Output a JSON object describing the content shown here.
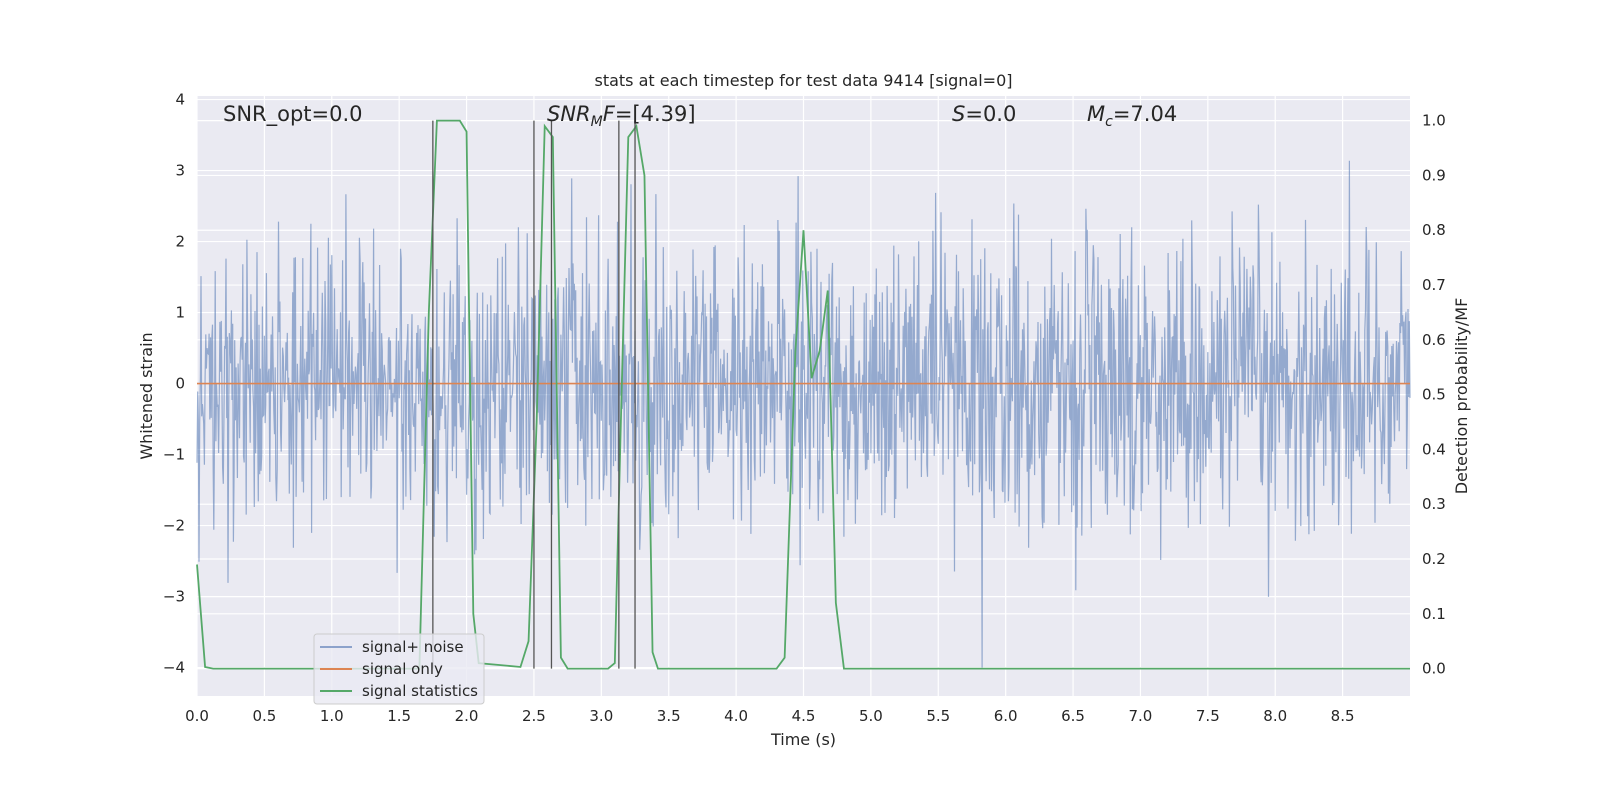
{
  "chart_data": {
    "type": "line",
    "title": "stats at each timestep for test data 9414 [signal=0]",
    "xlabel": "Time (s)",
    "ylabel": "Whitened strain",
    "y2label": "Detection probability/MF",
    "xlim": [
      0.0,
      9.0
    ],
    "ylim": [
      -4.4,
      4.05
    ],
    "y2lim": [
      -0.05,
      1.045
    ],
    "xticks": [
      "0.0",
      "0.5",
      "1.0",
      "1.5",
      "2.0",
      "2.5",
      "3.0",
      "3.5",
      "4.0",
      "4.5",
      "5.0",
      "5.5",
      "6.0",
      "6.5",
      "7.0",
      "7.5",
      "8.0",
      "8.5"
    ],
    "yticks": [
      "4",
      "3",
      "2",
      "1",
      "0",
      "−1",
      "−2",
      "−3",
      "−4"
    ],
    "y2ticks": [
      "1.0",
      "0.9",
      "0.8",
      "0.7",
      "0.6",
      "0.5",
      "0.4",
      "0.3",
      "0.2",
      "0.1",
      "0.0"
    ],
    "annotations": {
      "snr_opt": "SNR_opt=0.0",
      "snr_mf_base": "SNR",
      "snr_mf_sub": "M",
      "snr_mf_mid": "F",
      "snr_mf_val": "=[4.39]",
      "s_sym": "S",
      "s_val": "=0.0",
      "mc_base": "M",
      "mc_sub": "c",
      "mc_val": "=7.04"
    },
    "legend": {
      "position": "lower-left",
      "entries": [
        "signal+ noise",
        "signal only",
        "signal statistics"
      ]
    },
    "series": [
      {
        "name": "signal+ noise",
        "color": "#4c72b0",
        "style": "band",
        "noise_sigma": 1.0,
        "typical_range": [
          -2.6,
          2.9
        ],
        "extremes": [
          -4.0,
          3.5
        ]
      },
      {
        "name": "signal only",
        "color": "#dd8452",
        "x": [
          0.0,
          9.0
        ],
        "y": [
          0.0,
          0.0
        ]
      },
      {
        "name": "signal statistics",
        "color": "#55a868",
        "axis": "right",
        "x": [
          0.0,
          0.06,
          0.12,
          1.0,
          1.65,
          1.72,
          1.78,
          1.83,
          1.95,
          2.0,
          2.05,
          2.09,
          2.4,
          2.46,
          2.52,
          2.58,
          2.64,
          2.7,
          2.75,
          3.05,
          3.1,
          3.15,
          3.2,
          3.26,
          3.32,
          3.38,
          3.42,
          3.5,
          4.3,
          4.36,
          4.44,
          4.5,
          4.56,
          4.62,
          4.68,
          4.74,
          4.8,
          9.0
        ],
        "y": [
          0.19,
          0.003,
          0.0,
          0.0,
          0.0,
          0.65,
          1.0,
          1.0,
          1.0,
          0.98,
          0.1,
          0.01,
          0.003,
          0.05,
          0.45,
          0.99,
          0.97,
          0.02,
          0.0,
          0.0,
          0.01,
          0.5,
          0.97,
          0.99,
          0.9,
          0.03,
          0.0,
          0.0,
          0.0,
          0.02,
          0.58,
          0.8,
          0.53,
          0.58,
          0.69,
          0.12,
          0.0,
          0.0
        ]
      }
    ],
    "vlines": {
      "color": "#555555",
      "x": [
        1.75,
        2.5,
        2.63,
        3.13,
        3.25
      ],
      "y2_range": [
        0.0,
        1.0
      ]
    }
  }
}
